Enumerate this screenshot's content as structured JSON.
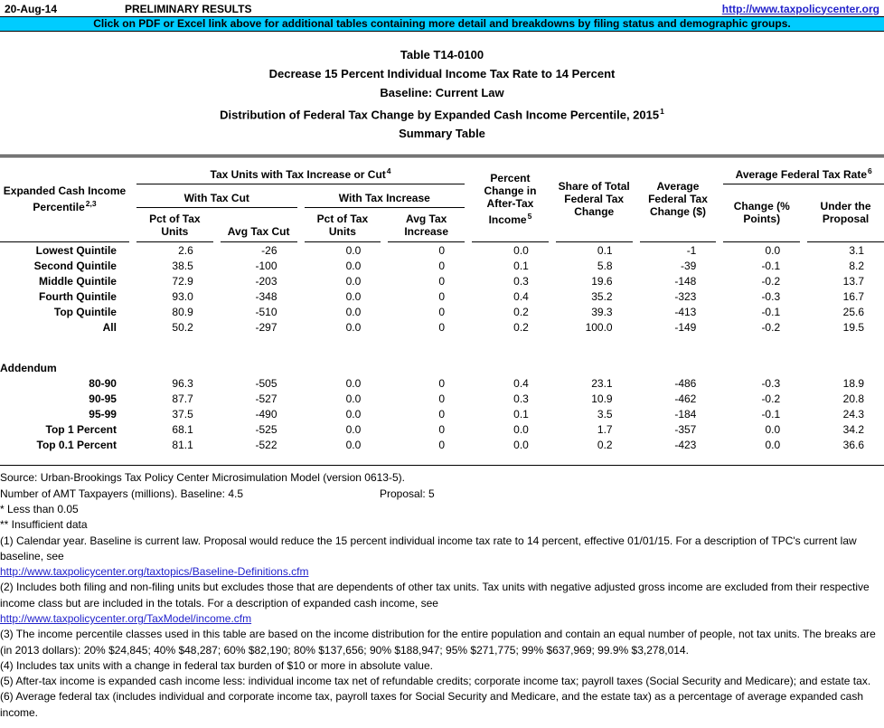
{
  "colors": {
    "banner": "#00CCFF",
    "link": "#2323CC"
  },
  "header": {
    "date": "20-Aug-14",
    "preliminary": "PRELIMINARY RESULTS",
    "site_url": "http://www.taxpolicycenter.org",
    "banner": "Click on PDF or Excel link above for additional tables containing more detail and breakdowns by filing status and demographic groups."
  },
  "title": {
    "line1": "Table T14-0100",
    "line2": "Decrease 15 Percent Individual Income Tax Rate to 14 Percent",
    "line3": "Baseline: Current Law",
    "line4": "Distribution of Federal Tax Change by Expanded Cash Income Percentile, 2015",
    "line4_sup": "1",
    "line5": "Summary Table"
  },
  "table": {
    "col_label": {
      "text": "Expanded Cash Income Percentile",
      "sup": "2,3"
    },
    "group_tax_units": {
      "text": "Tax Units with Tax Increase or Cut",
      "sup": "4"
    },
    "group_with_cut": "With Tax Cut",
    "group_with_increase": "With Tax Increase",
    "col_pct_units_cut": "Pct of Tax Units",
    "col_avg_cut": "Avg Tax Cut",
    "col_pct_units_inc": "Pct of Tax Units",
    "col_avg_inc": "Avg Tax Increase",
    "col_pct_change": {
      "text": "Percent Change in After-Tax Income",
      "sup": "5"
    },
    "col_share": "Share of Total Federal Tax Change",
    "col_avg_change": "Average Federal Tax Change ($)",
    "group_avg_rate": {
      "text": "Average Federal Tax Rate",
      "sup": "6"
    },
    "col_rate_change": "Change (% Points)",
    "col_rate_proposal": "Under the Proposal",
    "rows": [
      {
        "label": "Lowest Quintile",
        "values": [
          "2.6",
          "-26",
          "0.0",
          "0",
          "0.0",
          "0.1",
          "-1",
          "0.0",
          "3.1"
        ]
      },
      {
        "label": "Second Quintile",
        "values": [
          "38.5",
          "-100",
          "0.0",
          "0",
          "0.1",
          "5.8",
          "-39",
          "-0.1",
          "8.2"
        ]
      },
      {
        "label": "Middle Quintile",
        "values": [
          "72.9",
          "-203",
          "0.0",
          "0",
          "0.3",
          "19.6",
          "-148",
          "-0.2",
          "13.7"
        ]
      },
      {
        "label": "Fourth Quintile",
        "values": [
          "93.0",
          "-348",
          "0.0",
          "0",
          "0.4",
          "35.2",
          "-323",
          "-0.3",
          "16.7"
        ]
      },
      {
        "label": "Top Quintile",
        "values": [
          "80.9",
          "-510",
          "0.0",
          "0",
          "0.2",
          "39.3",
          "-413",
          "-0.1",
          "25.6"
        ]
      },
      {
        "label": "All",
        "values": [
          "50.2",
          "-297",
          "0.0",
          "0",
          "0.2",
          "100.0",
          "-149",
          "-0.2",
          "19.5"
        ]
      }
    ],
    "addendum_label": "Addendum",
    "addendum_rows": [
      {
        "label": "80-90",
        "values": [
          "96.3",
          "-505",
          "0.0",
          "0",
          "0.4",
          "23.1",
          "-486",
          "-0.3",
          "18.9"
        ]
      },
      {
        "label": "90-95",
        "values": [
          "87.7",
          "-527",
          "0.0",
          "0",
          "0.3",
          "10.9",
          "-462",
          "-0.2",
          "20.8"
        ]
      },
      {
        "label": "95-99",
        "values": [
          "37.5",
          "-490",
          "0.0",
          "0",
          "0.1",
          "3.5",
          "-184",
          "-0.1",
          "24.3"
        ]
      },
      {
        "label": "Top 1 Percent",
        "values": [
          "68.1",
          "-525",
          "0.0",
          "0",
          "0.0",
          "1.7",
          "-357",
          "0.0",
          "34.2"
        ]
      },
      {
        "label": "Top 0.1 Percent",
        "values": [
          "81.1",
          "-522",
          "0.0",
          "0",
          "0.0",
          "0.2",
          "-423",
          "0.0",
          "36.6"
        ]
      }
    ]
  },
  "footer": {
    "source": "Source: Urban-Brookings Tax Policy Center Microsimulation Model (version 0613-5).",
    "amt_label": "Number of AMT Taxpayers (millions).  Baseline: 4.5",
    "amt_proposal": "Proposal: 5",
    "star1": "* Less than 0.05",
    "star2": "** Insufficient data",
    "note1": "(1) Calendar year. Baseline is current law. Proposal would reduce the 15 percent individual income tax rate to 14 percent, effective 01/01/15. For a description of TPC's current law baseline, see",
    "link1": "http://www.taxpolicycenter.org/taxtopics/Baseline-Definitions.cfm",
    "note2": "(2) Includes both filing and non-filing units but excludes those that are dependents of other tax units. Tax units with negative adjusted gross income are excluded from their respective income class but are included in the totals. For a description of expanded cash income, see",
    "link2": "http://www.taxpolicycenter.org/TaxModel/income.cfm",
    "note3": "(3) The income percentile classes used in this table are based on the income distribution for the entire population and contain an equal number of people, not tax units. The breaks are (in 2013 dollars): 20% $24,845; 40% $48,287; 60% $82,190; 80% $137,656; 90% $188,947; 95% $271,775; 99% $637,969; 99.9% $3,278,014.",
    "note4": "(4) Includes tax units with a change in federal tax burden of $10 or more in absolute value.",
    "note5": "(5) After-tax income is expanded cash income less: individual income tax net of refundable credits; corporate income tax; payroll taxes (Social Security and Medicare); and estate tax.",
    "note6": "(6) Average federal tax (includes individual and corporate income tax, payroll taxes for Social Security and Medicare, and the estate tax) as a percentage of average expanded cash income."
  }
}
